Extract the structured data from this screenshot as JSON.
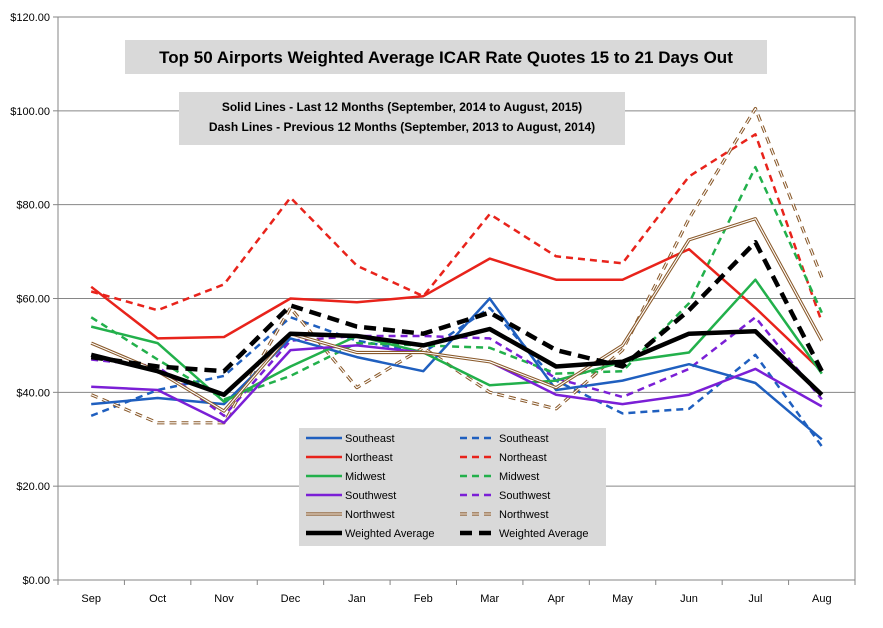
{
  "chart_data": {
    "type": "line",
    "title": "Top 50 Airports  Weighted Average  ICAR Rate Quotes  15 to 21 Days Out",
    "notes": [
      "Solid Lines - Last 12 Months  (September, 2014 to August, 2015)",
      "Dash Lines - Previous 12 Months (September, 2013 to August, 2014)"
    ],
    "categories": [
      "Sep",
      "Oct",
      "Nov",
      "Dec",
      "Jan",
      "Feb",
      "Mar",
      "Apr",
      "May",
      "Jun",
      "Jul",
      "Aug"
    ],
    "ylim": [
      0,
      120
    ],
    "yticks": [
      0,
      20,
      40,
      60,
      80,
      100,
      120
    ],
    "ytick_labels": [
      "$0.00",
      "$20.00",
      "$40.00",
      "$60.00",
      "$80.00",
      "$100.00",
      "$120.00"
    ],
    "grid": true,
    "legend_position": "bottom-center",
    "series": [
      {
        "name": "Southeast",
        "style": "solid",
        "color": "#1f5fbf",
        "values": [
          37.5,
          38.8,
          37.5,
          51.5,
          47.5,
          44.5,
          60,
          40.5,
          42.5,
          46,
          42,
          30
        ]
      },
      {
        "name": "Northeast",
        "style": "solid",
        "color": "#e8231b",
        "values": [
          62.5,
          51.5,
          51.8,
          60,
          59.2,
          60.5,
          68.5,
          64,
          64,
          70.5,
          58,
          44.5
        ]
      },
      {
        "name": "Midwest",
        "style": "solid",
        "color": "#22b04b",
        "values": [
          54,
          50.5,
          38,
          45.5,
          52,
          48.5,
          41.5,
          42.5,
          46.5,
          48.5,
          64,
          44
        ]
      },
      {
        "name": "Southwest",
        "style": "solid",
        "color": "#7b1fd6",
        "values": [
          41.2,
          40.5,
          33.5,
          49,
          50,
          48.5,
          46.5,
          39.5,
          37.5,
          39.5,
          45,
          37
        ]
      },
      {
        "name": "Northwest",
        "style": "solid",
        "color": "#8a5a2b",
        "values": [
          50.5,
          44.5,
          36,
          52.5,
          48.5,
          48.5,
          46.5,
          41,
          50,
          72.5,
          77,
          51
        ]
      },
      {
        "name": "Weighted Average",
        "style": "solid",
        "color": "#000000",
        "values": [
          48,
          44.5,
          39.5,
          52.5,
          52,
          50,
          53.5,
          45.5,
          46.5,
          52.5,
          53,
          39.5
        ]
      },
      {
        "name": "Southeast",
        "style": "dash",
        "color": "#1f5fbf",
        "values": [
          35,
          40.5,
          43.5,
          56,
          51,
          48.5,
          58,
          42.5,
          35.5,
          36.5,
          48,
          28.5
        ]
      },
      {
        "name": "Northeast",
        "style": "dash",
        "color": "#e8231b",
        "values": [
          61.5,
          57.5,
          63,
          81.5,
          67,
          60.5,
          78,
          69,
          67.5,
          86,
          95,
          55
        ]
      },
      {
        "name": "Midwest",
        "style": "dash",
        "color": "#22b04b",
        "values": [
          56,
          47,
          38.5,
          43.5,
          50.5,
          50,
          49.5,
          44,
          44.5,
          59,
          88,
          57
        ]
      },
      {
        "name": "Southwest",
        "style": "dash",
        "color": "#7b1fd6",
        "values": [
          47,
          45.5,
          35,
          51,
          52,
          52,
          51.5,
          43,
          39,
          45,
          56,
          38.5
        ]
      },
      {
        "name": "Northwest",
        "style": "dash",
        "color": "#8a5a2b",
        "values": [
          39.5,
          33.5,
          33.5,
          58,
          41,
          49.5,
          40,
          36.5,
          49,
          77,
          100.5,
          64.5
        ]
      },
      {
        "name": "Weighted Average",
        "style": "dash",
        "color": "#000000",
        "values": [
          47.5,
          45.5,
          44.5,
          58.5,
          54,
          52.5,
          57,
          49,
          45.5,
          57.5,
          72,
          44.5
        ]
      }
    ]
  }
}
